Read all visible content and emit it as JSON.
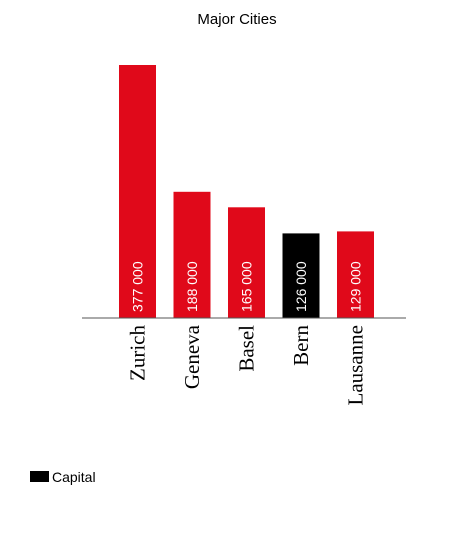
{
  "chart_data": {
    "type": "bar",
    "title": "Major Cities",
    "categories": [
      "Zurich",
      "Geneva",
      "Basel",
      "Bern",
      "Lausanne"
    ],
    "values": [
      377000,
      188000,
      165000,
      126000,
      129000
    ],
    "value_labels": [
      "377 000",
      "188 000",
      "165 000",
      "126 000",
      "129 000"
    ],
    "highlight": [
      false,
      false,
      false,
      true,
      false
    ],
    "colors": {
      "default": "#e0091a",
      "highlight": "#000000"
    },
    "ylim": [
      0,
      377000
    ],
    "grid": false,
    "legend": {
      "position": "bottom-left",
      "label": "Capital",
      "color": "#000000"
    }
  }
}
